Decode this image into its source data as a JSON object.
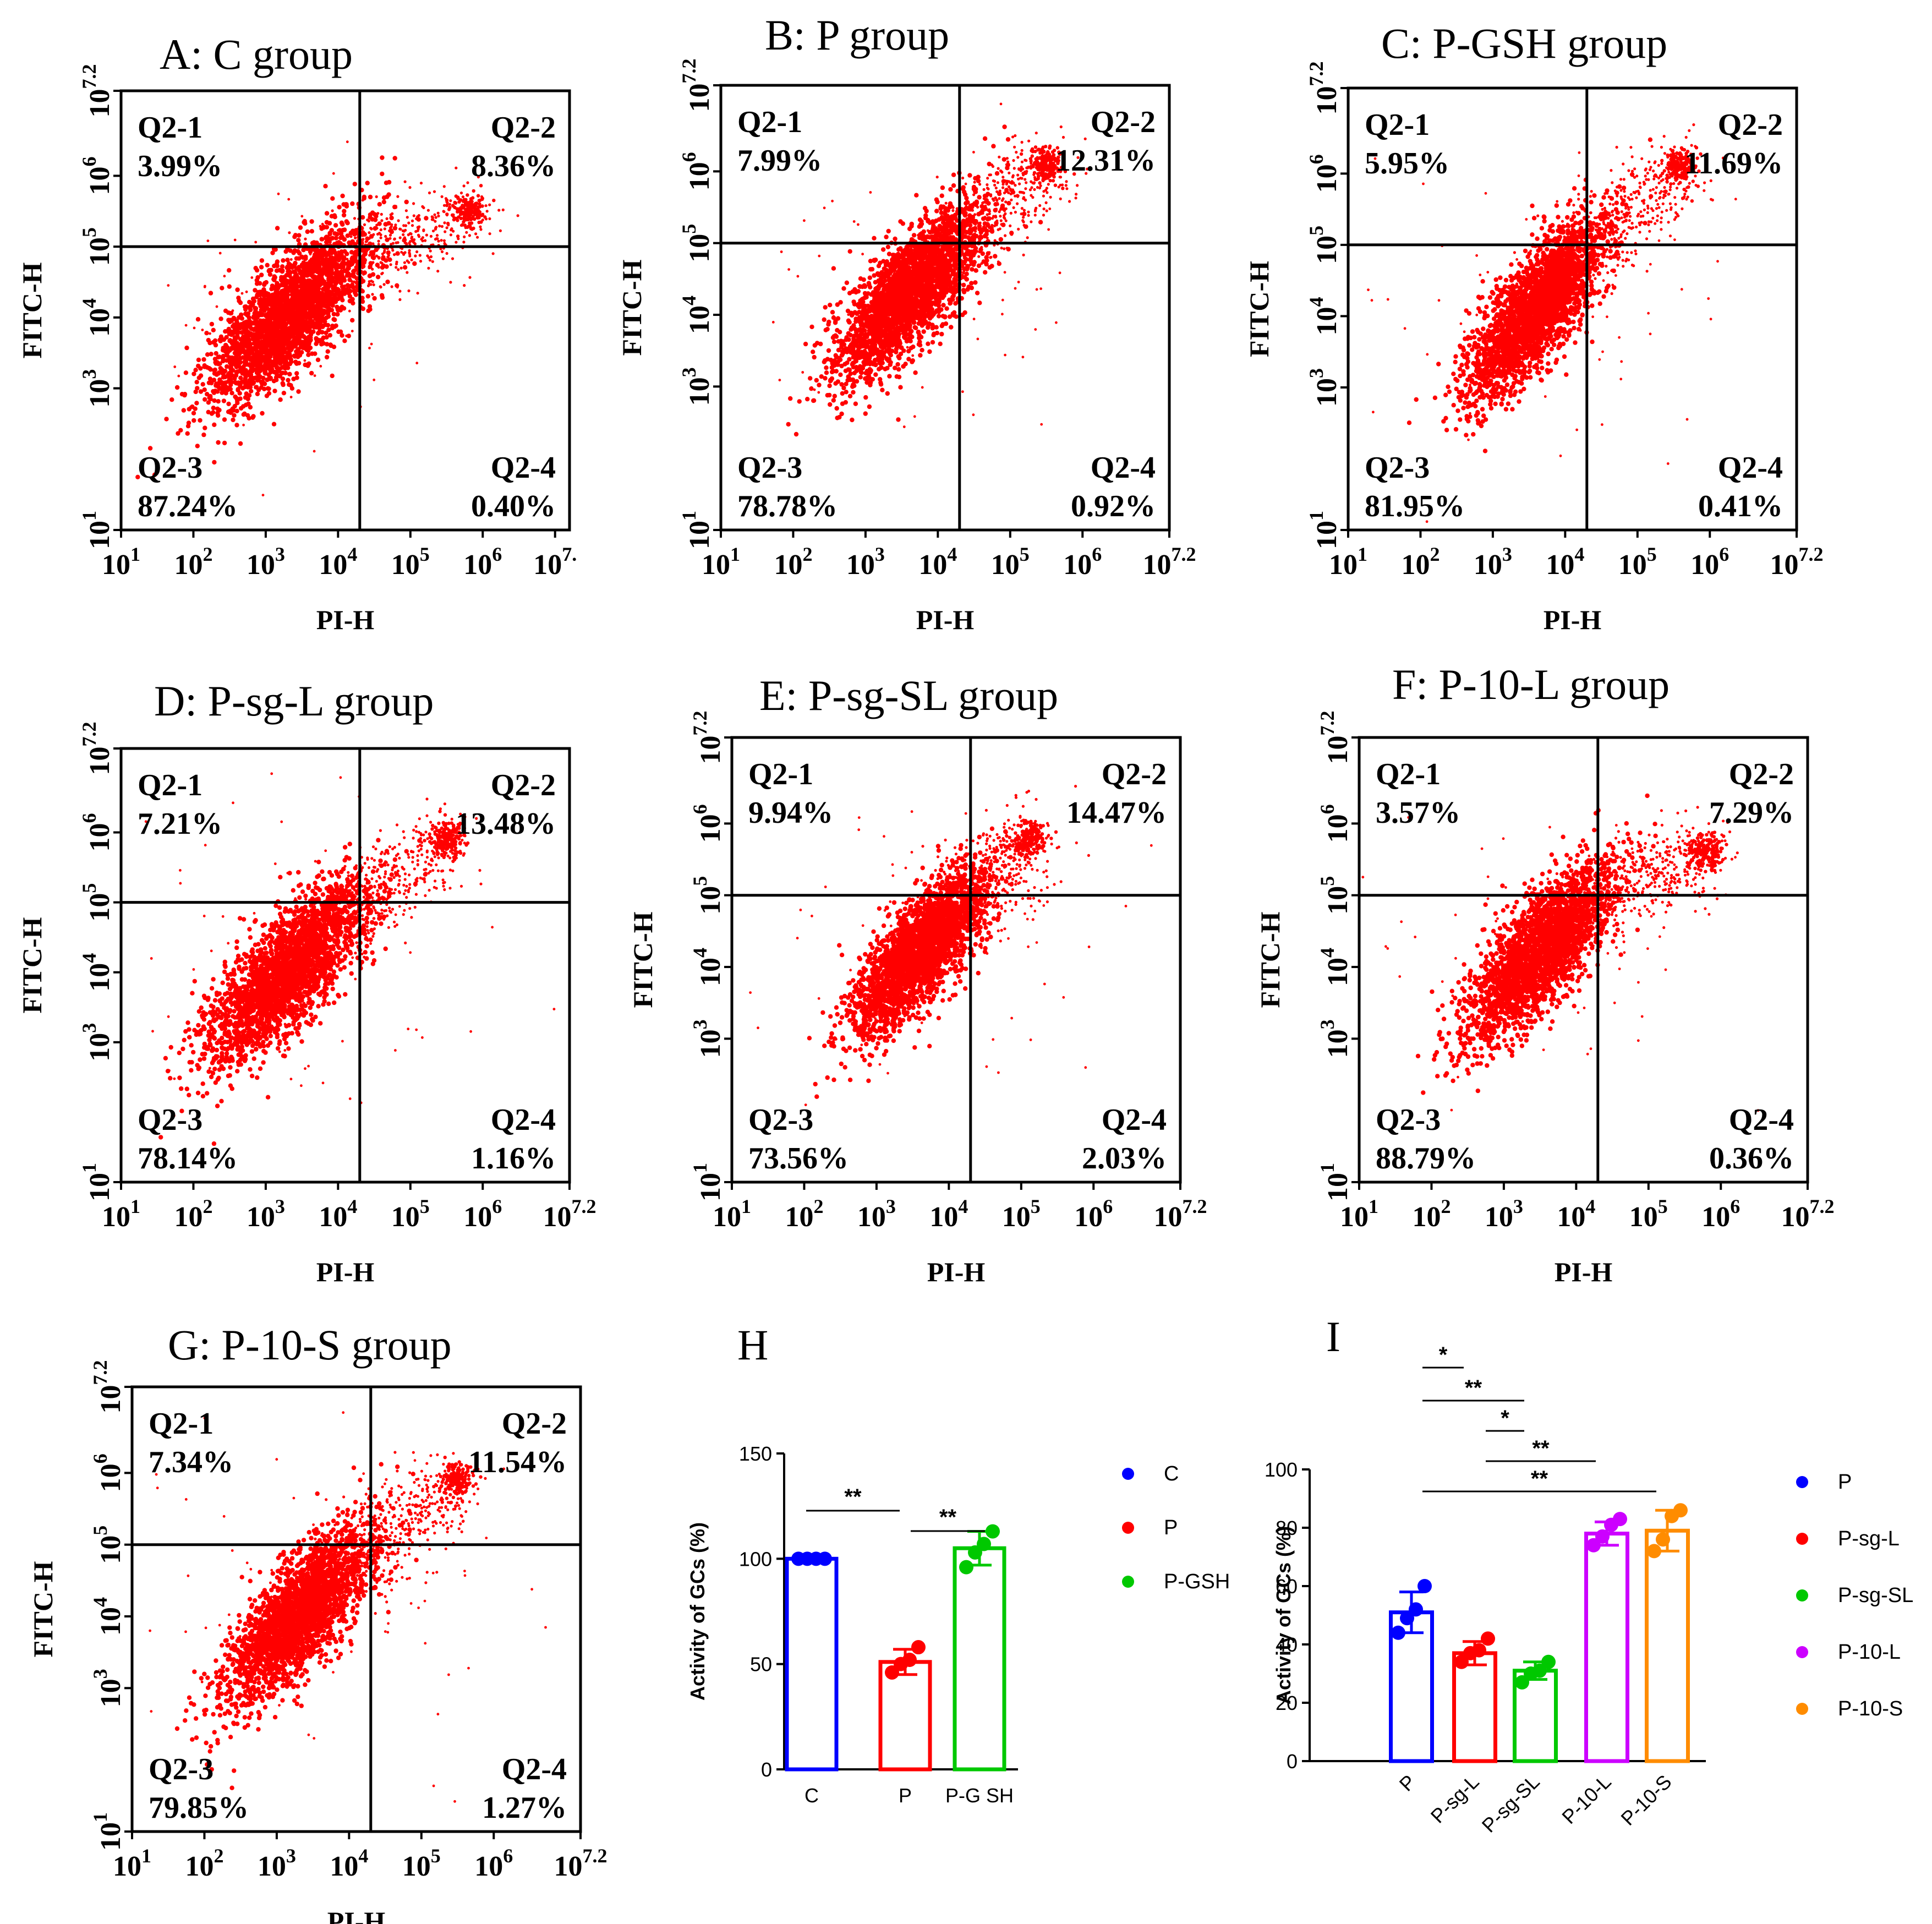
{
  "chart_data": [
    {
      "type": "scatter",
      "panel": "A",
      "title": "A: C group",
      "xlabel": "PI-H",
      "ylabel": "FITC-H",
      "axis_scale": "log10",
      "xlim_exp": [
        1,
        7.2
      ],
      "ylim_exp": [
        1,
        7.2
      ],
      "x_ticks": [
        {
          "base": "10",
          "exp": "1"
        },
        {
          "base": "10",
          "exp": "2"
        },
        {
          "base": "10",
          "exp": "3"
        },
        {
          "base": "10",
          "exp": "4"
        },
        {
          "base": "10",
          "exp": "5"
        },
        {
          "base": "10",
          "exp": "6"
        },
        {
          "base": "10",
          "exp": "7."
        }
      ],
      "y_ticks": [
        {
          "base": "10",
          "exp": "1"
        },
        {
          "base": "10",
          "exp": "3"
        },
        {
          "base": "10",
          "exp": "4"
        },
        {
          "base": "10",
          "exp": "5"
        },
        {
          "base": "10",
          "exp": "6"
        },
        {
          "base": "10",
          "exp": "7.2"
        }
      ],
      "gates": {
        "x_exp": 4.3,
        "y_exp": 5.0
      },
      "quadrants": [
        {
          "name": "Q2-1",
          "percent": "3.99%"
        },
        {
          "name": "Q2-2",
          "percent": "8.36%"
        },
        {
          "name": "Q2-3",
          "percent": "87.24%"
        },
        {
          "name": "Q2-4",
          "percent": "0.40%"
        }
      ],
      "cluster": {
        "cx": 3.3,
        "cy": 4.0,
        "sx": 0.55,
        "sy": 0.62,
        "ux": 5.8,
        "uy": 5.5
      },
      "color": "#ff0000"
    },
    {
      "type": "scatter",
      "panel": "B",
      "title": "B: P group",
      "xlabel": "PI-H",
      "ylabel": "FITC-H",
      "axis_scale": "log10",
      "xlim_exp": [
        1,
        7.2
      ],
      "ylim_exp": [
        1,
        7.2
      ],
      "x_ticks": [
        {
          "base": "10",
          "exp": "1"
        },
        {
          "base": "10",
          "exp": "2"
        },
        {
          "base": "10",
          "exp": "3"
        },
        {
          "base": "10",
          "exp": "4"
        },
        {
          "base": "10",
          "exp": "5"
        },
        {
          "base": "10",
          "exp": "6"
        },
        {
          "base": "10",
          "exp": "7.2"
        }
      ],
      "y_ticks": [
        {
          "base": "10",
          "exp": "1"
        },
        {
          "base": "10",
          "exp": "3"
        },
        {
          "base": "10",
          "exp": "4"
        },
        {
          "base": "10",
          "exp": "5"
        },
        {
          "base": "10",
          "exp": "6"
        },
        {
          "base": "10",
          "exp": "7.2"
        }
      ],
      "gates": {
        "x_exp": 4.3,
        "y_exp": 5.0
      },
      "quadrants": [
        {
          "name": "Q2-1",
          "percent": "7.99%"
        },
        {
          "name": "Q2-2",
          "percent": "12.31%"
        },
        {
          "name": "Q2-3",
          "percent": "78.78%"
        },
        {
          "name": "Q2-4",
          "percent": "0.92%"
        }
      ],
      "cluster": {
        "cx": 3.6,
        "cy": 4.3,
        "sx": 0.5,
        "sy": 0.6,
        "ux": 5.5,
        "uy": 6.1
      },
      "color": "#ff0000"
    },
    {
      "type": "scatter",
      "panel": "C",
      "title": "C: P-GSH group",
      "xlabel": "PI-H",
      "ylabel": "FITC-H",
      "axis_scale": "log10",
      "xlim_exp": [
        1,
        7.2
      ],
      "ylim_exp": [
        1,
        7.2
      ],
      "x_ticks": [
        {
          "base": "10",
          "exp": "1"
        },
        {
          "base": "10",
          "exp": "2"
        },
        {
          "base": "10",
          "exp": "3"
        },
        {
          "base": "10",
          "exp": "4"
        },
        {
          "base": "10",
          "exp": "5"
        },
        {
          "base": "10",
          "exp": "6"
        },
        {
          "base": "10",
          "exp": "7.2"
        }
      ],
      "y_ticks": [
        {
          "base": "10",
          "exp": "1"
        },
        {
          "base": "10",
          "exp": "3"
        },
        {
          "base": "10",
          "exp": "4"
        },
        {
          "base": "10",
          "exp": "5"
        },
        {
          "base": "10",
          "exp": "6"
        },
        {
          "base": "10",
          "exp": "7.2"
        }
      ],
      "gates": {
        "x_exp": 4.3,
        "y_exp": 5.0
      },
      "quadrants": [
        {
          "name": "Q2-1",
          "percent": "5.95%"
        },
        {
          "name": "Q2-2",
          "percent": "11.69%"
        },
        {
          "name": "Q2-3",
          "percent": "81.95%"
        },
        {
          "name": "Q2-4",
          "percent": "0.41%"
        }
      ],
      "cluster": {
        "cx": 3.6,
        "cy": 4.1,
        "sx": 0.45,
        "sy": 0.6,
        "ux": 5.6,
        "uy": 6.1
      },
      "color": "#ff0000"
    },
    {
      "type": "scatter",
      "panel": "D",
      "title": "D: P-sg-L group",
      "xlabel": "PI-H",
      "ylabel": "FITC-H",
      "axis_scale": "log10",
      "xlim_exp": [
        1,
        7.2
      ],
      "ylim_exp": [
        1,
        7.2
      ],
      "x_ticks": [
        {
          "base": "10",
          "exp": "1"
        },
        {
          "base": "10",
          "exp": "2"
        },
        {
          "base": "10",
          "exp": "3"
        },
        {
          "base": "10",
          "exp": "4"
        },
        {
          "base": "10",
          "exp": "5"
        },
        {
          "base": "10",
          "exp": "6"
        },
        {
          "base": "10",
          "exp": "7.2"
        }
      ],
      "y_ticks": [
        {
          "base": "10",
          "exp": "1"
        },
        {
          "base": "10",
          "exp": "3"
        },
        {
          "base": "10",
          "exp": "4"
        },
        {
          "base": "10",
          "exp": "5"
        },
        {
          "base": "10",
          "exp": "6"
        },
        {
          "base": "10",
          "exp": "7.2"
        }
      ],
      "gates": {
        "x_exp": 4.3,
        "y_exp": 5.0
      },
      "quadrants": [
        {
          "name": "Q2-1",
          "percent": "7.21%"
        },
        {
          "name": "Q2-2",
          "percent": "13.48%"
        },
        {
          "name": "Q2-3",
          "percent": "78.14%"
        },
        {
          "name": "Q2-4",
          "percent": "1.16%"
        }
      ],
      "cluster": {
        "cx": 3.3,
        "cy": 4.0,
        "sx": 0.55,
        "sy": 0.65,
        "ux": 5.5,
        "uy": 5.9
      },
      "color": "#ff0000"
    },
    {
      "type": "scatter",
      "panel": "E",
      "title": "E: P-sg-SL group",
      "xlabel": "PI-H",
      "ylabel": "FITC-H",
      "axis_scale": "log10",
      "xlim_exp": [
        1,
        7.2
      ],
      "ylim_exp": [
        1,
        7.2
      ],
      "x_ticks": [
        {
          "base": "10",
          "exp": "1"
        },
        {
          "base": "10",
          "exp": "2"
        },
        {
          "base": "10",
          "exp": "3"
        },
        {
          "base": "10",
          "exp": "4"
        },
        {
          "base": "10",
          "exp": "5"
        },
        {
          "base": "10",
          "exp": "6"
        },
        {
          "base": "10",
          "exp": "7.2"
        }
      ],
      "y_ticks": [
        {
          "base": "10",
          "exp": "1"
        },
        {
          "base": "10",
          "exp": "3"
        },
        {
          "base": "10",
          "exp": "4"
        },
        {
          "base": "10",
          "exp": "5"
        },
        {
          "base": "10",
          "exp": "6"
        },
        {
          "base": "10",
          "exp": "7.2"
        }
      ],
      "gates": {
        "x_exp": 4.3,
        "y_exp": 5.0
      },
      "quadrants": [
        {
          "name": "Q2-1",
          "percent": "9.94%"
        },
        {
          "name": "Q2-2",
          "percent": "14.47%"
        },
        {
          "name": "Q2-3",
          "percent": "73.56%"
        },
        {
          "name": "Q2-4",
          "percent": "2.03%"
        }
      ],
      "cluster": {
        "cx": 3.6,
        "cy": 4.2,
        "sx": 0.45,
        "sy": 0.55,
        "ux": 5.1,
        "uy": 5.8
      },
      "color": "#ff0000"
    },
    {
      "type": "scatter",
      "panel": "F",
      "title": "F: P-10-L group",
      "xlabel": "PI-H",
      "ylabel": "FITC-H",
      "axis_scale": "log10",
      "xlim_exp": [
        1,
        7.2
      ],
      "ylim_exp": [
        1,
        7.2
      ],
      "x_ticks": [
        {
          "base": "10",
          "exp": "1"
        },
        {
          "base": "10",
          "exp": "2"
        },
        {
          "base": "10",
          "exp": "3"
        },
        {
          "base": "10",
          "exp": "4"
        },
        {
          "base": "10",
          "exp": "5"
        },
        {
          "base": "10",
          "exp": "6"
        },
        {
          "base": "10",
          "exp": "7.2"
        }
      ],
      "y_ticks": [
        {
          "base": "10",
          "exp": "1"
        },
        {
          "base": "10",
          "exp": "3"
        },
        {
          "base": "10",
          "exp": "4"
        },
        {
          "base": "10",
          "exp": "5"
        },
        {
          "base": "10",
          "exp": "6"
        },
        {
          "base": "10",
          "exp": "7.2"
        }
      ],
      "gates": {
        "x_exp": 4.3,
        "y_exp": 5.0
      },
      "quadrants": [
        {
          "name": "Q2-1",
          "percent": "3.57%"
        },
        {
          "name": "Q2-2",
          "percent": "7.29%"
        },
        {
          "name": "Q2-3",
          "percent": "88.79%"
        },
        {
          "name": "Q2-4",
          "percent": "0.36%"
        }
      ],
      "cluster": {
        "cx": 3.5,
        "cy": 4.2,
        "sx": 0.5,
        "sy": 0.6,
        "ux": 5.8,
        "uy": 5.6
      },
      "color": "#ff0000"
    },
    {
      "type": "scatter",
      "panel": "G",
      "title": "G: P-10-S group",
      "xlabel": "PI-H",
      "ylabel": "FITC-H",
      "axis_scale": "log10",
      "xlim_exp": [
        1,
        7.2
      ],
      "ylim_exp": [
        1,
        7.2
      ],
      "x_ticks": [
        {
          "base": "10",
          "exp": "1"
        },
        {
          "base": "10",
          "exp": "2"
        },
        {
          "base": "10",
          "exp": "3"
        },
        {
          "base": "10",
          "exp": "4"
        },
        {
          "base": "10",
          "exp": "5"
        },
        {
          "base": "10",
          "exp": "6"
        },
        {
          "base": "10",
          "exp": "7.2"
        }
      ],
      "y_ticks": [
        {
          "base": "10",
          "exp": "1"
        },
        {
          "base": "10",
          "exp": "3"
        },
        {
          "base": "10",
          "exp": "4"
        },
        {
          "base": "10",
          "exp": "5"
        },
        {
          "base": "10",
          "exp": "6"
        },
        {
          "base": "10",
          "exp": "7.2"
        }
      ],
      "gates": {
        "x_exp": 4.3,
        "y_exp": 5.0
      },
      "quadrants": [
        {
          "name": "Q2-1",
          "percent": "7.34%"
        },
        {
          "name": "Q2-2",
          "percent": "11.54%"
        },
        {
          "name": "Q2-3",
          "percent": "79.85%"
        },
        {
          "name": "Q2-4",
          "percent": "1.27%"
        }
      ],
      "cluster": {
        "cx": 3.3,
        "cy": 4.0,
        "sx": 0.5,
        "sy": 0.6,
        "ux": 5.5,
        "uy": 5.9
      },
      "color": "#ff0000"
    },
    {
      "type": "bar",
      "panel": "H",
      "title": "H",
      "ylabel": "Activity of GCs (%)",
      "ylim": [
        0,
        150
      ],
      "yticks": [
        0,
        50,
        100,
        150
      ],
      "categories": [
        "C",
        "P",
        "P-GSH"
      ],
      "category_labels": [
        "C",
        "P",
        "P-G SH"
      ],
      "colors": [
        "#0000ff",
        "#ff0000",
        "#00c800"
      ],
      "values": [
        100,
        51,
        105
      ],
      "errors": [
        0.5,
        6,
        8
      ],
      "points": [
        [
          100,
          100,
          100,
          100
        ],
        [
          46,
          50,
          52,
          58
        ],
        [
          96,
          103,
          107,
          113
        ]
      ],
      "significance": [
        {
          "from": 0,
          "to": 1,
          "label": "**"
        },
        {
          "from": 1,
          "to": 2,
          "label": "**"
        }
      ],
      "legend": [
        "C",
        "P",
        "P-GSH"
      ]
    },
    {
      "type": "bar",
      "panel": "I",
      "title": "I",
      "ylabel": "Activity of GCs (%)",
      "ylim": [
        0,
        100
      ],
      "yticks": [
        0,
        20,
        40,
        60,
        80,
        100
      ],
      "categories": [
        "P",
        "P-sg-L",
        "P-sg-SL",
        "P-10-L",
        "P-10-S"
      ],
      "colors": [
        "#0000ff",
        "#ff0000",
        "#00c800",
        "#cc00ff",
        "#ff8c00"
      ],
      "values": [
        51,
        37,
        31,
        78,
        79
      ],
      "errors": [
        7,
        4,
        3,
        4,
        7
      ],
      "points": [
        [
          44,
          49,
          52,
          60
        ],
        [
          34,
          37,
          38,
          42
        ],
        [
          27,
          30,
          31,
          34
        ],
        [
          74,
          77,
          81,
          83
        ],
        [
          72,
          76,
          84,
          86
        ]
      ],
      "significance": [
        {
          "from": 0,
          "to": 1,
          "label": "*"
        },
        {
          "from": 0,
          "to": 2,
          "label": "**"
        },
        {
          "from": 1,
          "to": 2,
          "label": "*"
        },
        {
          "from": 1,
          "to": 3,
          "label": "**"
        },
        {
          "from": 0,
          "to": 4,
          "label": "**"
        }
      ],
      "legend": [
        "P",
        "P-sg-L",
        "P-sg-SL",
        "P-10-L",
        "P-10-S"
      ]
    }
  ]
}
